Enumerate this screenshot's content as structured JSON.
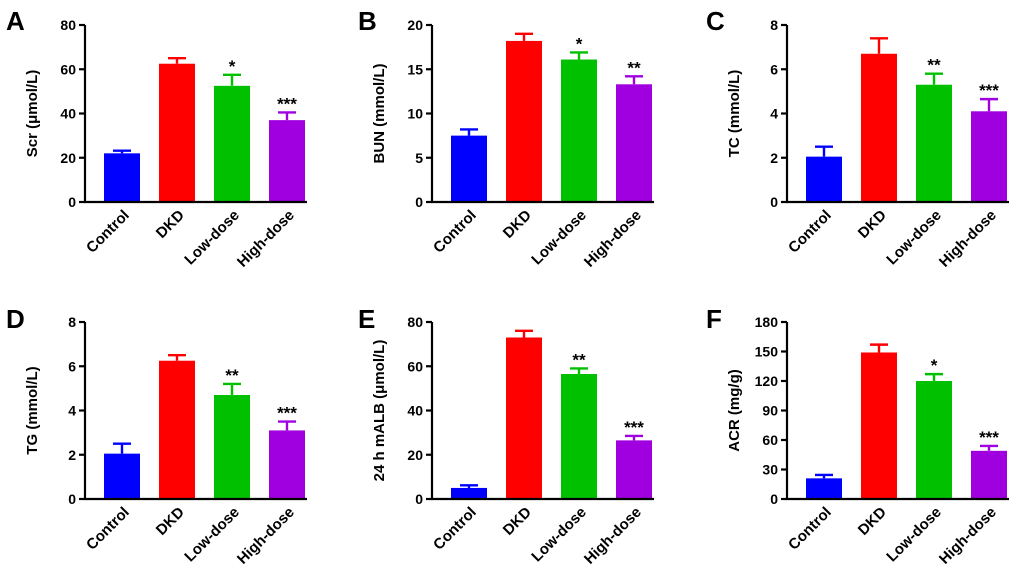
{
  "colors": {
    "control": "#0000ff",
    "dkd": "#ff0000",
    "low_dose": "#00c000",
    "high_dose": "#a000e0",
    "axis": "#000000"
  },
  "chart_data": [
    {
      "type": "bar",
      "panel": "A",
      "ylabel": "Scr (μmol/L)",
      "categories": [
        "Control",
        "DKD",
        "Low-dose",
        "High-dose"
      ],
      "values": [
        22,
        62.5,
        52.5,
        37
      ],
      "errors": [
        1.2,
        2.5,
        5,
        3.5
      ],
      "significance": [
        "",
        "",
        "*",
        "***"
      ],
      "ylim": [
        0,
        80
      ],
      "yticks": [
        0,
        20,
        40,
        60,
        80
      ]
    },
    {
      "type": "bar",
      "panel": "B",
      "ylabel": "BUN (mmol/L)",
      "categories": [
        "Control",
        "DKD",
        "Low-dose",
        "High-dose"
      ],
      "values": [
        7.5,
        18.2,
        16.1,
        13.3
      ],
      "errors": [
        0.7,
        0.8,
        0.8,
        0.9
      ],
      "significance": [
        "",
        "",
        "*",
        "**"
      ],
      "ylim": [
        0,
        20
      ],
      "yticks": [
        0,
        5,
        10,
        15,
        20
      ]
    },
    {
      "type": "bar",
      "panel": "C",
      "ylabel": "TC (mmol/L)",
      "categories": [
        "Control",
        "DKD",
        "Low-dose",
        "High-dose"
      ],
      "values": [
        2.05,
        6.7,
        5.3,
        4.1
      ],
      "errors": [
        0.45,
        0.7,
        0.5,
        0.55
      ],
      "significance": [
        "",
        "",
        "**",
        "***"
      ],
      "ylim": [
        0,
        8
      ],
      "yticks": [
        0,
        2,
        4,
        6,
        8
      ]
    },
    {
      "type": "bar",
      "panel": "D",
      "ylabel": "TG (mmol/L)",
      "categories": [
        "Control",
        "DKD",
        "Low-dose",
        "High-dose"
      ],
      "values": [
        2.05,
        6.25,
        4.7,
        3.1
      ],
      "errors": [
        0.45,
        0.25,
        0.5,
        0.4
      ],
      "significance": [
        "",
        "",
        "**",
        "***"
      ],
      "ylim": [
        0,
        8
      ],
      "yticks": [
        0,
        2,
        4,
        6,
        8
      ]
    },
    {
      "type": "bar",
      "panel": "E",
      "ylabel": "24 h mALB (μmol/L)",
      "categories": [
        "Control",
        "DKD",
        "Low-dose",
        "High-dose"
      ],
      "values": [
        5,
        73,
        56.5,
        26.5
      ],
      "errors": [
        1.2,
        3,
        2.5,
        2
      ],
      "significance": [
        "",
        "",
        "**",
        "***"
      ],
      "ylim": [
        0,
        80
      ],
      "yticks": [
        0,
        20,
        40,
        60,
        80
      ]
    },
    {
      "type": "bar",
      "panel": "F",
      "ylabel": "ACR (mg/g)",
      "categories": [
        "Control",
        "DKD",
        "Low-dose",
        "High-dose"
      ],
      "values": [
        21,
        149,
        120,
        49
      ],
      "errors": [
        3.5,
        8,
        7,
        5
      ],
      "significance": [
        "",
        "",
        "*",
        "***"
      ],
      "ylim": [
        0,
        180
      ],
      "yticks": [
        0,
        30,
        60,
        90,
        120,
        150,
        180
      ]
    }
  ]
}
